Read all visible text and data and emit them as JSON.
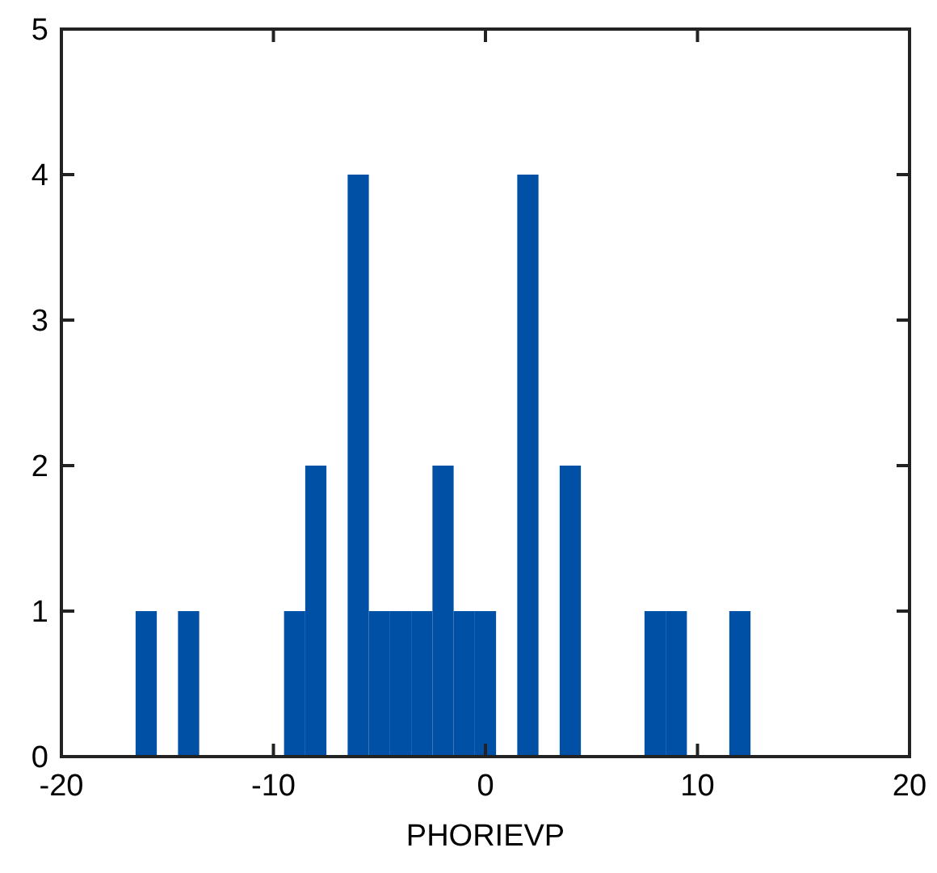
{
  "chart_data": {
    "type": "histogram",
    "xlabel": "PHORIEVP",
    "bins": [
      -16.5,
      -15.5,
      -14.5,
      -13.5,
      -12.5,
      -11.5,
      -10.5,
      -9.5,
      -8.5,
      -7.5,
      -6.5,
      -5.5,
      -4.5,
      -3.5,
      -2.5,
      -1.5,
      -0.5,
      0.5,
      1.5,
      2.5,
      3.5,
      4.5,
      5.5,
      6.5,
      7.5,
      8.5,
      9.5,
      10.5,
      11.5,
      12.5
    ],
    "values": [
      1,
      0,
      1,
      0,
      0,
      0,
      0,
      1,
      2,
      0,
      4,
      1,
      1,
      1,
      2,
      1,
      1,
      0,
      4,
      0,
      2,
      0,
      0,
      0,
      1,
      1,
      0,
      0,
      1
    ],
    "color": "#0050a5",
    "xlim": [
      -20,
      20
    ],
    "xticks": [
      -20,
      -10,
      0,
      10,
      20
    ],
    "ylim": [
      0,
      5
    ],
    "yticks": [
      0,
      1,
      2,
      3,
      4,
      5
    ],
    "grid": false
  }
}
